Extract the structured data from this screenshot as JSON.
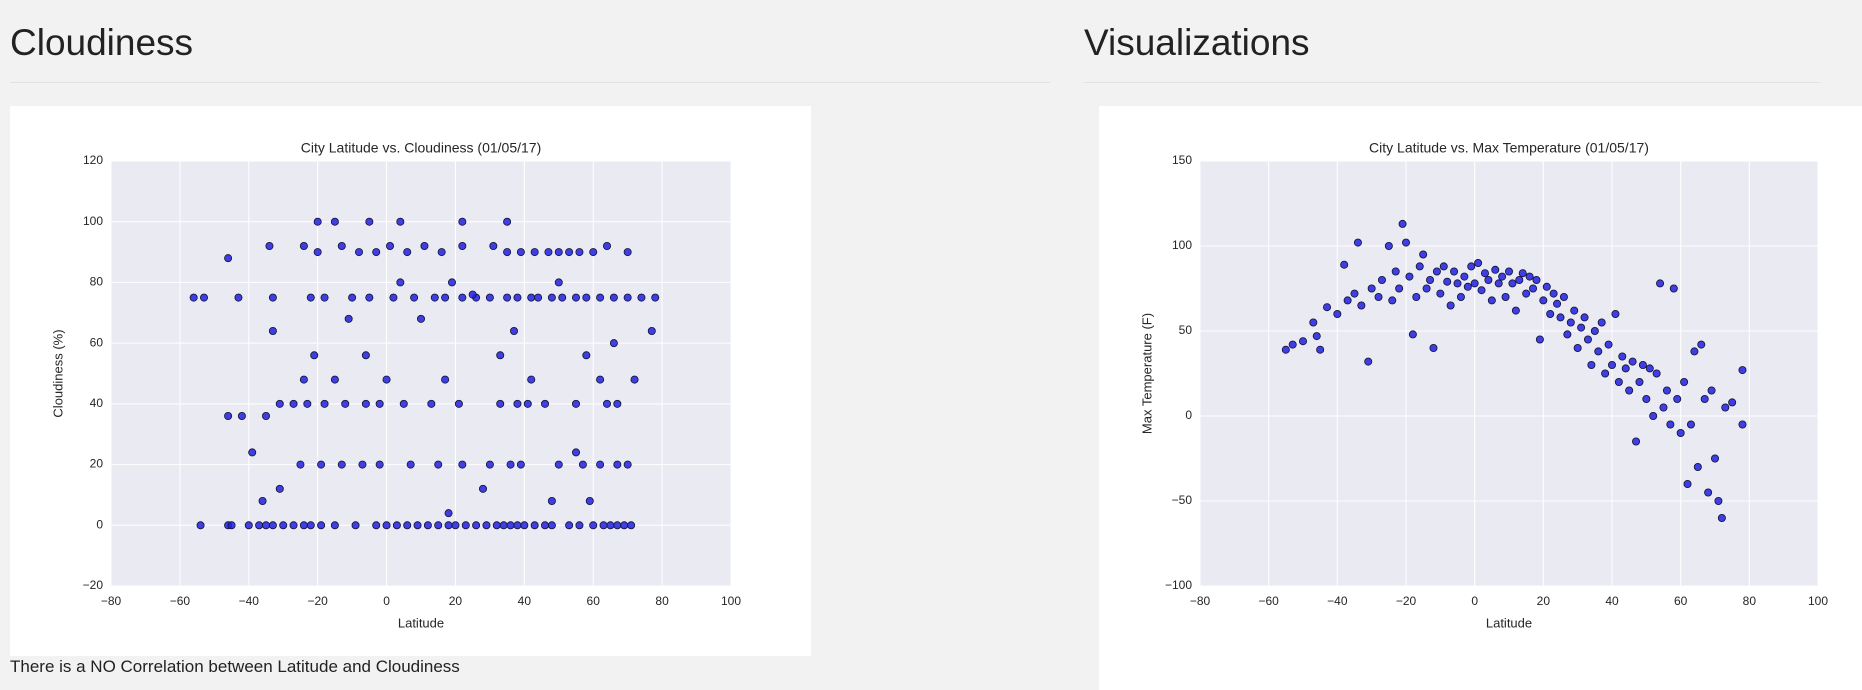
{
  "page": {
    "left_heading": "Cloudiness",
    "right_heading": "Visualizations",
    "caption": "There is a NO Correlation between Latitude and Cloudiness"
  },
  "chart_data": [
    {
      "type": "scatter",
      "title": "City Latitude vs. Cloudiness (01/05/17)",
      "x_label": "Latitude",
      "y_label": "Cloudiness (%)",
      "color": "#2020e0",
      "edge_color": "#111133",
      "background": "#eaeaf2",
      "grid": true,
      "xlim": [
        -80,
        100
      ],
      "xticks": [
        {
          "value": -80,
          "label": "−80"
        },
        {
          "value": -60,
          "label": "−60"
        },
        {
          "value": -40,
          "label": "−40"
        },
        {
          "value": -20,
          "label": "−20"
        },
        0,
        20,
        40,
        60,
        80,
        100
      ],
      "ylim": [
        -20,
        120
      ],
      "yticks": [
        {
          "value": -20,
          "label": "−20"
        },
        0,
        20,
        40,
        60,
        80,
        100,
        120
      ],
      "x": [
        -54,
        -46,
        -45,
        -40,
        -37,
        -35,
        -33,
        -30,
        -27,
        -24,
        -22,
        -19,
        -15,
        -9,
        -3,
        0,
        3,
        6,
        9,
        12,
        15,
        18,
        20,
        23,
        26,
        29,
        32,
        34,
        36,
        38,
        40,
        43,
        46,
        48,
        53,
        56,
        60,
        63,
        65,
        67,
        69,
        71,
        -56,
        -53,
        -43,
        -33,
        -22,
        -18,
        -10,
        -5,
        2,
        8,
        14,
        17,
        22,
        26,
        30,
        35,
        38,
        42,
        44,
        48,
        51,
        55,
        58,
        62,
        66,
        70,
        74,
        78,
        -34,
        -24,
        -20,
        -13,
        -8,
        -3,
        1,
        6,
        11,
        16,
        22,
        31,
        35,
        39,
        43,
        47,
        50,
        53,
        56,
        60,
        64,
        70,
        -20,
        -15,
        -5,
        4,
        22,
        35,
        -35,
        -31,
        -27,
        -23,
        -18,
        -12,
        -6,
        -2,
        5,
        13,
        21,
        33,
        38,
        41,
        46,
        55,
        64,
        67,
        -31,
        -25,
        -19,
        -13,
        -7,
        -2,
        7,
        15,
        22,
        30,
        36,
        39,
        50,
        57,
        62,
        67,
        70,
        -46,
        -46,
        -42,
        -39,
        -33,
        -24,
        -21,
        -15,
        -11,
        -6,
        0,
        4,
        10,
        17,
        19,
        25,
        33,
        37,
        42,
        50,
        55,
        58,
        62,
        66,
        72,
        77,
        48,
        59,
        28,
        18,
        -36
      ],
      "values": [
        0,
        0,
        0,
        0,
        0,
        0,
        0,
        0,
        0,
        0,
        0,
        0,
        0,
        0,
        0,
        0,
        0,
        0,
        0,
        0,
        0,
        0,
        0,
        0,
        0,
        0,
        0,
        0,
        0,
        0,
        0,
        0,
        0,
        0,
        0,
        0,
        0,
        0,
        0,
        0,
        0,
        0,
        75,
        75,
        75,
        75,
        75,
        75,
        75,
        75,
        75,
        75,
        75,
        75,
        75,
        75,
        75,
        75,
        75,
        75,
        75,
        75,
        75,
        75,
        75,
        75,
        75,
        75,
        75,
        75,
        92,
        92,
        90,
        92,
        90,
        90,
        92,
        90,
        92,
        90,
        92,
        92,
        90,
        90,
        90,
        90,
        90,
        90,
        90,
        90,
        92,
        90,
        100,
        100,
        100,
        100,
        100,
        100,
        36,
        40,
        40,
        40,
        40,
        40,
        40,
        40,
        40,
        40,
        40,
        40,
        40,
        40,
        40,
        40,
        40,
        40,
        12,
        20,
        20,
        20,
        20,
        20,
        20,
        20,
        20,
        20,
        20,
        20,
        20,
        20,
        20,
        20,
        20,
        36,
        88,
        36,
        24,
        64,
        48,
        56,
        48,
        68,
        56,
        48,
        80,
        68,
        48,
        80,
        76,
        56,
        64,
        48,
        80,
        24,
        56,
        48,
        60,
        48,
        64,
        8,
        8,
        12,
        4,
        8
      ]
    },
    {
      "type": "scatter",
      "title": "City Latitude vs. Max Temperature (01/05/17)",
      "x_label": "Latitude",
      "y_label": "Max Temperature (F)",
      "color": "#2020e0",
      "edge_color": "#111133",
      "background": "#eaeaf2",
      "grid": true,
      "xlim": [
        -80,
        100
      ],
      "xticks": [
        {
          "value": -80,
          "label": "−80"
        },
        {
          "value": -60,
          "label": "−60"
        },
        {
          "value": -40,
          "label": "−40"
        },
        {
          "value": -20,
          "label": "−20"
        },
        0,
        20,
        40,
        60,
        80,
        100
      ],
      "ylim": [
        -100,
        150
      ],
      "yticks": [
        {
          "value": -100,
          "label": "−100"
        },
        {
          "value": -50,
          "label": "−50"
        },
        0,
        50,
        100,
        150
      ],
      "x": [
        -55,
        -53,
        -50,
        -47,
        -46,
        -45,
        -43,
        -40,
        -38,
        -37,
        -35,
        -34,
        -33,
        -31,
        -30,
        -28,
        -27,
        -25,
        -24,
        -23,
        -22,
        -21,
        -20,
        -19,
        -18,
        -17,
        -16,
        -15,
        -14,
        -13,
        -12,
        -11,
        -10,
        -9,
        -8,
        -7,
        -6,
        -5,
        -4,
        -3,
        -2,
        -1,
        0,
        1,
        2,
        3,
        4,
        5,
        6,
        7,
        8,
        9,
        10,
        11,
        12,
        13,
        14,
        15,
        16,
        17,
        18,
        19,
        20,
        21,
        22,
        23,
        24,
        25,
        26,
        27,
        28,
        29,
        30,
        31,
        32,
        33,
        34,
        35,
        36,
        37,
        38,
        39,
        40,
        41,
        42,
        43,
        44,
        45,
        46,
        47,
        48,
        49,
        50,
        51,
        52,
        53,
        54,
        55,
        56,
        57,
        58,
        59,
        60,
        61,
        62,
        63,
        64,
        65,
        66,
        67,
        68,
        69,
        70,
        71,
        72,
        73,
        75,
        78,
        78
      ],
      "values": [
        39,
        42,
        44,
        55,
        47,
        39,
        64,
        60,
        89,
        68,
        72,
        102,
        65,
        32,
        75,
        70,
        80,
        100,
        68,
        85,
        75,
        113,
        102,
        82,
        48,
        70,
        88,
        95,
        75,
        80,
        40,
        85,
        72,
        88,
        79,
        65,
        85,
        78,
        70,
        82,
        76,
        88,
        78,
        90,
        74,
        84,
        80,
        68,
        86,
        78,
        82,
        70,
        85,
        78,
        62,
        80,
        84,
        72,
        82,
        75,
        80,
        45,
        68,
        76,
        60,
        72,
        66,
        58,
        70,
        48,
        55,
        62,
        40,
        52,
        58,
        45,
        30,
        50,
        38,
        55,
        25,
        42,
        30,
        60,
        20,
        35,
        28,
        15,
        32,
        -15,
        20,
        30,
        10,
        28,
        0,
        25,
        78,
        5,
        15,
        -5,
        75,
        10,
        -10,
        20,
        -40,
        -5,
        38,
        -30,
        42,
        10,
        -45,
        15,
        -25,
        -50,
        -60,
        5,
        8,
        -5,
        27
      ]
    }
  ]
}
